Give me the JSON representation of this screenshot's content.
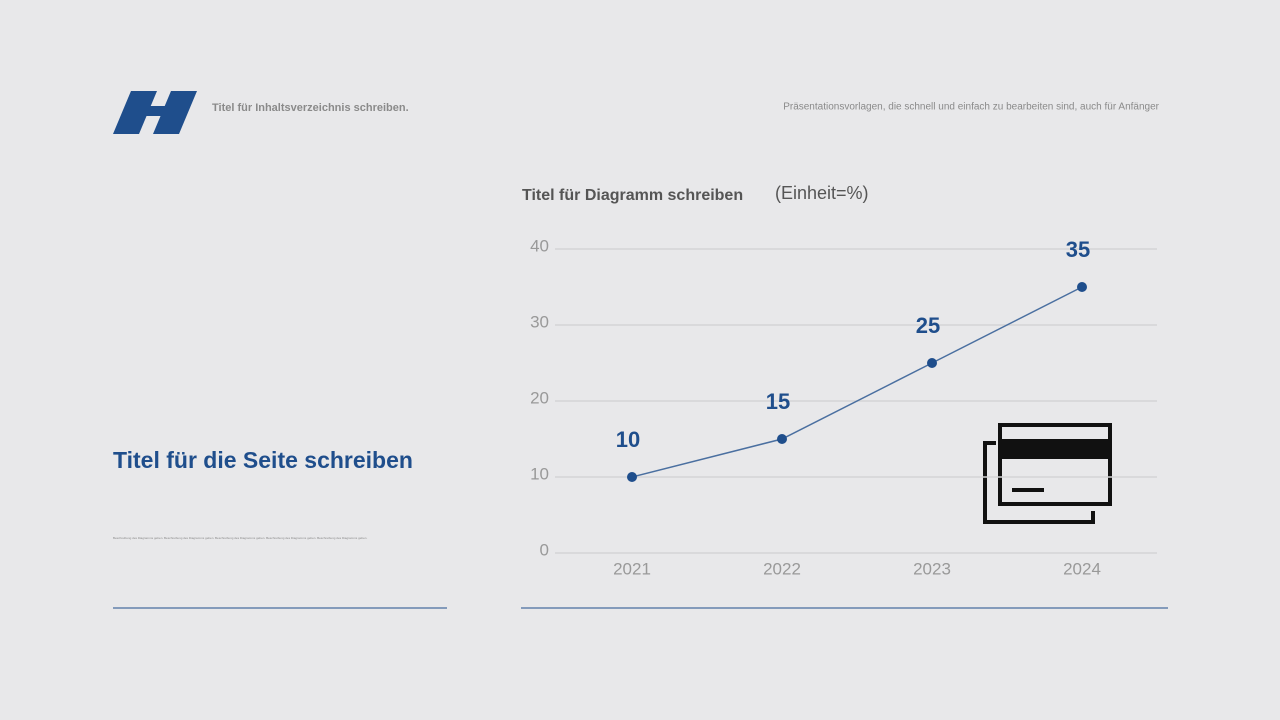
{
  "header": {
    "title": "Titel für Inhaltsverzeichnis schreiben.",
    "tagline": "Präsentationsvorlagen, die schnell und einfach zu bearbeiten sind, auch für Anfänger"
  },
  "page": {
    "title": "Titel für die Seite schreiben",
    "description": "Beschreibung des Diagramms geben. Beschreibung des Diagramms geben. Beschreibung des Diagramms geben. Beschreibung des Diagramms geben. Beschreibung des Diagramms geben."
  },
  "chart_data": {
    "type": "line",
    "title": "Titel für Diagramm schreiben",
    "subtitle": "(Einheit=%)",
    "categories": [
      "2021",
      "2022",
      "2023",
      "2024"
    ],
    "values": [
      10,
      15,
      25,
      35
    ],
    "color": "#4a6fa0",
    "marker_color": "#1f4e8c",
    "label_color": "#1f4e8c",
    "ylim": [
      0,
      40
    ],
    "yticks": [
      0,
      10,
      20,
      30,
      40
    ],
    "grid": true
  }
}
